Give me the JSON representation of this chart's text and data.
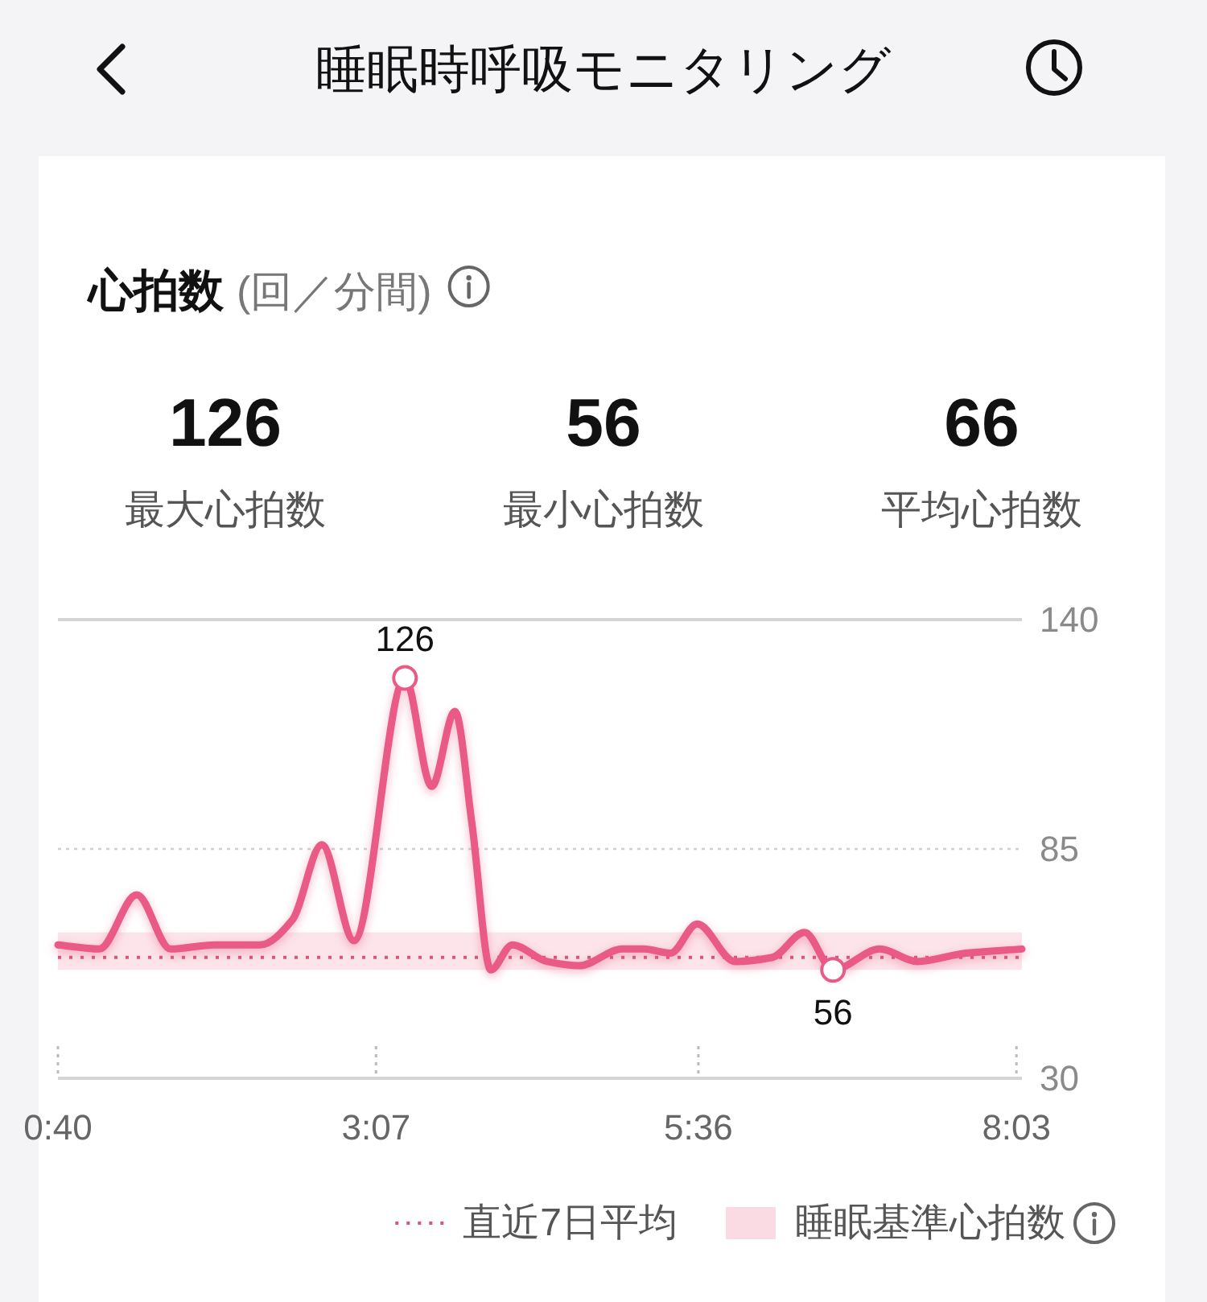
{
  "chart_data": {
    "type": "line",
    "title": "睡眠時呼吸モニタリング",
    "subtitle": "心拍数 (回／分間)",
    "x": [
      0.667,
      0.985,
      1.274,
      1.535,
      1.873,
      2.225,
      2.473,
      2.7,
      2.948,
      3.34,
      3.546,
      3.725,
      3.856,
      4.001,
      4.166,
      4.435,
      4.683,
      5.014,
      5.178,
      5.385,
      5.591,
      5.881,
      6.17,
      6.418,
      6.637,
      6.997,
      7.286,
      7.658,
      8.092
    ],
    "series": [
      {
        "color": "#e95a86",
        "values": [
          62,
          61,
          74,
          61,
          62,
          62,
          68,
          86,
          63,
          126,
          100,
          118,
          91,
          56,
          62,
          58,
          57,
          61,
          61,
          60,
          67,
          58,
          59,
          65,
          56,
          61,
          58,
          60,
          61
        ]
      }
    ],
    "xlim": [
      0.667,
      8.092
    ],
    "xticks": [
      {
        "value": 0.667,
        "label": "0:40"
      },
      {
        "value": 3.117,
        "label": "3:07"
      },
      {
        "value": 5.6,
        "label": "5:36"
      },
      {
        "value": 8.05,
        "label": "8:03"
      }
    ],
    "ylim": [
      30,
      140
    ],
    "yticks": [
      30,
      85,
      140
    ],
    "grid": "y",
    "ref_lines": [
      {
        "axis": "y",
        "value": 59,
        "label": "直近7日平均",
        "color": "#d6577a",
        "line_style": "dotted"
      }
    ],
    "bands": [
      {
        "axis": "y",
        "from": 56,
        "to": 65,
        "label": "睡眠基準心拍数",
        "color": "#fbdbe3"
      }
    ],
    "annotations": [
      "126",
      "最大心拍数",
      "56",
      "最小心拍数",
      "66",
      "平均心拍数",
      {
        "text": "126",
        "x": 3.34,
        "y": 126
      },
      {
        "text": "56",
        "x": 6.637,
        "y": 56
      }
    ],
    "legend": "bottom"
  }
}
